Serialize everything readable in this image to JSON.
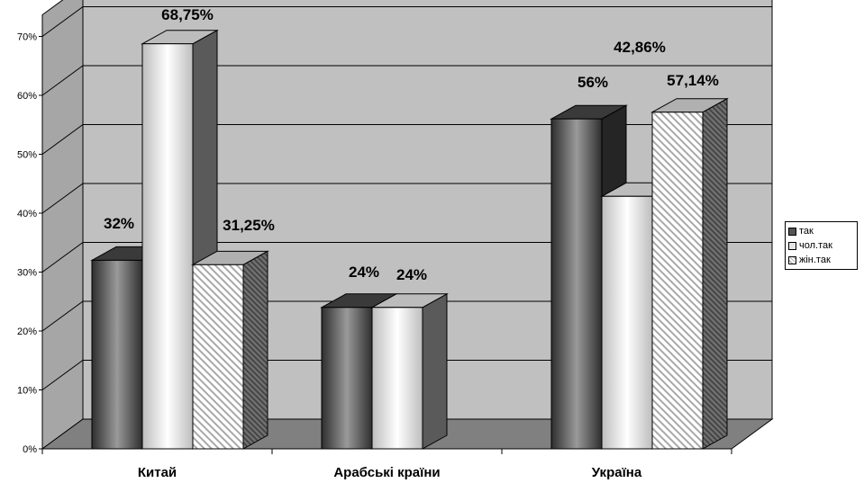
{
  "chart_data": {
    "type": "bar",
    "categories": [
      "Китай",
      "Арабські країни",
      "Україна"
    ],
    "series": [
      {
        "name": "так",
        "values": [
          32,
          24,
          56
        ],
        "labels": [
          "32%",
          "24%",
          "56%"
        ],
        "color": "#555555",
        "fill": "dark-gradient"
      },
      {
        "name": "чол.так",
        "values": [
          68.75,
          24,
          42.86
        ],
        "labels": [
          "68,75%",
          "24%",
          "42,86%"
        ],
        "color": "#e6e6e6",
        "fill": "light-gradient"
      },
      {
        "name": "жін.так",
        "values": [
          31.25,
          null,
          57.14
        ],
        "labels": [
          "31,25%",
          "",
          "57,14%"
        ],
        "color": "#ffffff",
        "fill": "diagonal-hatch"
      }
    ],
    "yticks": [
      "0%",
      "10%",
      "20%",
      "30%",
      "40%",
      "50%",
      "60%",
      "70%"
    ],
    "ylim": [
      0,
      70
    ],
    "grid": true,
    "legend_position": "right",
    "title": "",
    "xlabel": "",
    "ylabel": "",
    "wall_color": "#c0c0c0",
    "floor_color": "#808080"
  }
}
